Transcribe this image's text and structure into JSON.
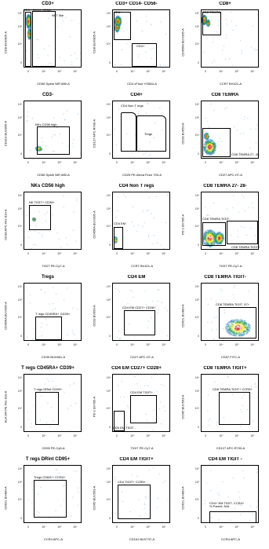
{
  "chart_data": [
    {
      "type": "scatter",
      "title": "CD3+",
      "xlabel": "CD56 Spark NIR 685-A",
      "ylabel": "CD8 BUV805-A",
      "gates": [
        {
          "label": "CD3+ CD14- CD56-"
        },
        {
          "label": "NKT like"
        }
      ]
    },
    {
      "type": "scatter",
      "title": "CD3+ CD14- CD56-",
      "xlabel": "CD4 cFluor YG584-A",
      "ylabel": "CD8 BUV805-A",
      "gates": [
        {
          "label": "CD8+"
        },
        {
          "label": "CD4+"
        }
      ]
    },
    {
      "type": "scatter",
      "title": "CD8+",
      "xlabel": "CCR7 BV421-A",
      "ylabel": "CD45RA BUV395-A",
      "gates": [
        {
          "label": "CD8 TEMRA"
        }
      ]
    },
    {
      "type": "scatter",
      "title": "CD3-",
      "xlabel": "CD56 Spark NIR 685-A",
      "ylabel": "CD314 BUV805-A",
      "gates": [
        {
          "label": "NKs CD56 high"
        }
      ]
    },
    {
      "type": "scatter",
      "title": "CD4+",
      "xlabel": "CD25 PE-Alexa Fluor 700-A",
      "ylabel": "CD127 APC-R700-A",
      "gates": [
        {
          "label": "CD4 Non T regs"
        },
        {
          "label": "Tregs"
        }
      ]
    },
    {
      "type": "scatter",
      "title": "CD8 TEMRA",
      "xlabel": "CD27 APC-H7-A",
      "ylabel": "CD28 BV650-A",
      "gates": [
        {
          "label": "CD8 TEMRA 27- 28-"
        }
      ]
    },
    {
      "type": "scatter",
      "title": "NKs CD56 high",
      "xlabel": "TIGIT PE-Cy7-A",
      "ylabel": "CD38 APC-Fire 810-A",
      "gates": [
        {
          "label": "NK TIGIT+ CD38+"
        }
      ]
    },
    {
      "type": "scatter",
      "title": "CD4 Non T regs",
      "xlabel": "CCR7 BV421-A",
      "ylabel": "CD45RA BUV395-A",
      "gates": [
        {
          "label": "CD4 EM"
        }
      ]
    },
    {
      "type": "scatter",
      "title": "CD8 TEMRA 27- 28-",
      "xlabel": "TIGIT PE-Cy7-A",
      "ylabel": "PD-1 BV785-A",
      "gates": [
        {
          "label": "CD8 TEMRA TIGIT-"
        },
        {
          "label": "CD8 TEMRA TIGIT+"
        }
      ]
    },
    {
      "type": "scatter",
      "title": "Tregs",
      "xlabel": "CD39 BUV661-A",
      "ylabel": "CD45RA BUV395-A",
      "gates": [
        {
          "label": "T regs CD45RA+ CD39+"
        }
      ]
    },
    {
      "type": "scatter",
      "title": "CD4 EM",
      "xlabel": "CD27 APC-H7-A",
      "ylabel": "CD28 BV650-A",
      "gates": [
        {
          "label": "CD4 EM CD27+ CD28+"
        }
      ]
    },
    {
      "type": "scatter",
      "title": "CD8 TEMRA TIGIT-",
      "xlabel": "CD57 FITC-A",
      "ylabel": "CD62L BV480-A",
      "gates": [
        {
          "label": "CD8 TEMRA TIGIT- 57+"
        }
      ]
    },
    {
      "type": "scatter",
      "title": "T regs CD45RA+ CD39+",
      "xlabel": "CD95 PE-Cy5-A",
      "ylabel": "HLA DR PE Fire 810-A",
      "gates": [
        {
          "label": "T regs DRint CD95+"
        }
      ]
    },
    {
      "type": "scatter",
      "title": "CD4 EM CD27+ CD28+",
      "xlabel": "TIGIT PE-Cy7-A",
      "ylabel": "PD-1 BV785-A",
      "gates": [
        {
          "label": "CD4 EM TIGIT+"
        },
        {
          "label": "CD4 EM TIGIT -"
        }
      ]
    },
    {
      "type": "scatter",
      "title": "CD8 TEMRA TIGIT+",
      "xlabel": "CD127 APC-R700-A",
      "ylabel": "CCR5 BUV563-A",
      "gates": [
        {
          "label": "CD8 TEMRA TIGIT+ CCR5+"
        }
      ]
    },
    {
      "type": "scatter",
      "title": "T regs DRint CD95+",
      "xlabel": "CCR4 APC-A",
      "ylabel": "CD62L BV480-A",
      "gates": [
        {
          "label": "Tregs CD62L+ CCR4+"
        }
      ]
    },
    {
      "type": "scatter",
      "title": "CD4 EM TIGIT+",
      "xlabel": "CD161 BUV737-A",
      "ylabel": "CCR5 BUV563-A",
      "gates": [
        {
          "label": "CD4 TIGIT+ CCR5+"
        }
      ]
    },
    {
      "type": "scatter",
      "title": "CD4 EM TIGIT -",
      "xlabel": "CCR4 APC-A",
      "ylabel": "CD62L BV480-A",
      "gates": [
        {
          "label": "CD4+ EM TIGIT- CCR4+\n% Parent: N/A"
        }
      ]
    }
  ],
  "x_ticks": [
    "0",
    "10⁴",
    "10⁵",
    "10⁶"
  ],
  "y_ticks": [
    "10⁶",
    "10⁵",
    "10⁴",
    "0"
  ],
  "colors": {
    "density_high": "#d7191c",
    "density_mid": "#f5e000",
    "density_low": "#1a9641",
    "density_sparse": "#2b83ba",
    "gate": "#000000"
  }
}
